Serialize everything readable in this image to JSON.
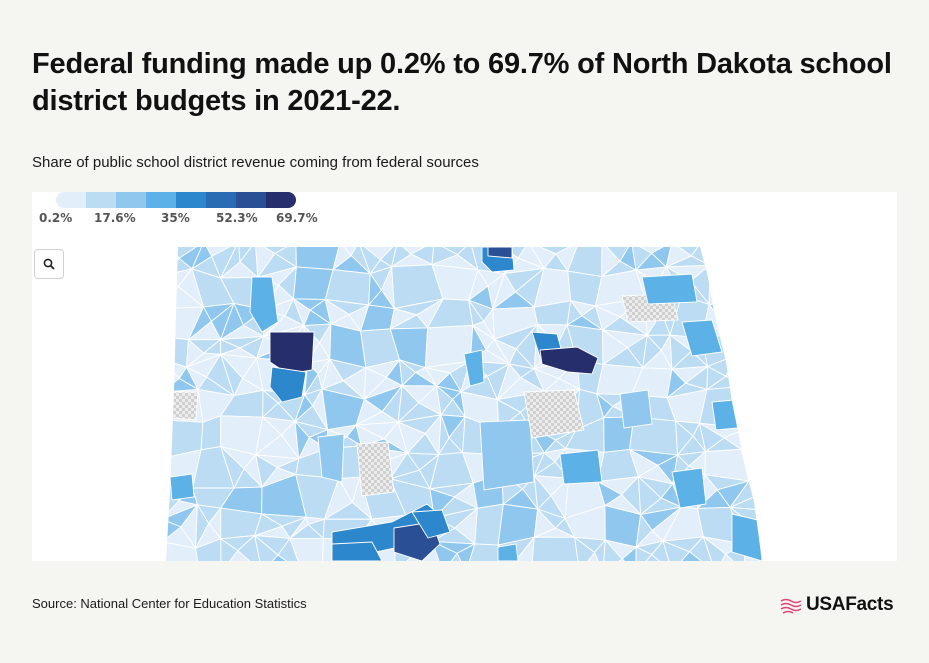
{
  "title": "Federal funding made up 0.2% to 69.7% of North Dakota school district budgets in 2021-22.",
  "subtitle": "Share of public school district revenue coming from federal sources",
  "legend": {
    "stops": [
      "0.2%",
      "17.6%",
      "35%",
      "52.3%",
      "69.7%"
    ],
    "colors": [
      "#e3eefb",
      "#bcdcf4",
      "#8fc7ef",
      "#5cb1e6",
      "#2d87cc",
      "#2a6cb3",
      "#2b4f94",
      "#262f6b"
    ]
  },
  "zoom_icon": "search-icon",
  "source": "Source: National Center for Education Statistics",
  "brand": {
    "name": "USAFacts",
    "icon": "flag-icon",
    "icon_color": "#e0457b"
  },
  "colors": {
    "nodata": "#d4d4d4",
    "boundary": "#ffffff"
  }
}
